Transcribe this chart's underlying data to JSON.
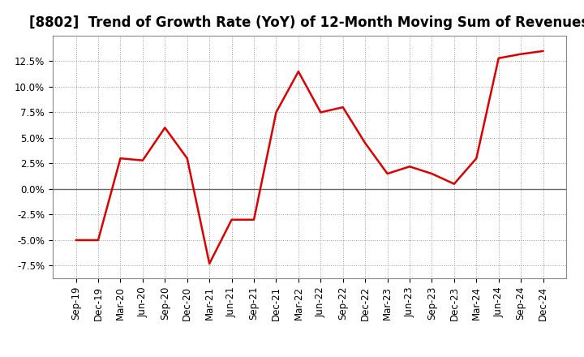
{
  "title": "[8802]  Trend of Growth Rate (YoY) of 12-Month Moving Sum of Revenues",
  "x_labels": [
    "Sep-19",
    "Dec-19",
    "Mar-20",
    "Jun-20",
    "Sep-20",
    "Dec-20",
    "Mar-21",
    "Jun-21",
    "Sep-21",
    "Dec-21",
    "Mar-22",
    "Jun-22",
    "Sep-22",
    "Dec-22",
    "Mar-23",
    "Jun-23",
    "Sep-23",
    "Dec-23",
    "Mar-24",
    "Jun-24",
    "Sep-24",
    "Dec-24"
  ],
  "y_values": [
    -5.0,
    -5.0,
    3.0,
    2.8,
    6.0,
    3.0,
    -7.3,
    -3.0,
    -3.0,
    7.5,
    11.5,
    7.5,
    8.0,
    4.5,
    1.5,
    2.2,
    1.5,
    0.5,
    3.0,
    12.8,
    13.2,
    13.5
  ],
  "line_color": "#dd0000",
  "line_width": 1.8,
  "ylim": [
    -8.75,
    15.0
  ],
  "yticks": [
    -7.5,
    -5.0,
    -2.5,
    0.0,
    2.5,
    5.0,
    7.5,
    10.0,
    12.5
  ],
  "grid_color": "#999999",
  "background_color": "#ffffff",
  "title_fontsize": 12,
  "tick_fontsize": 8.5
}
